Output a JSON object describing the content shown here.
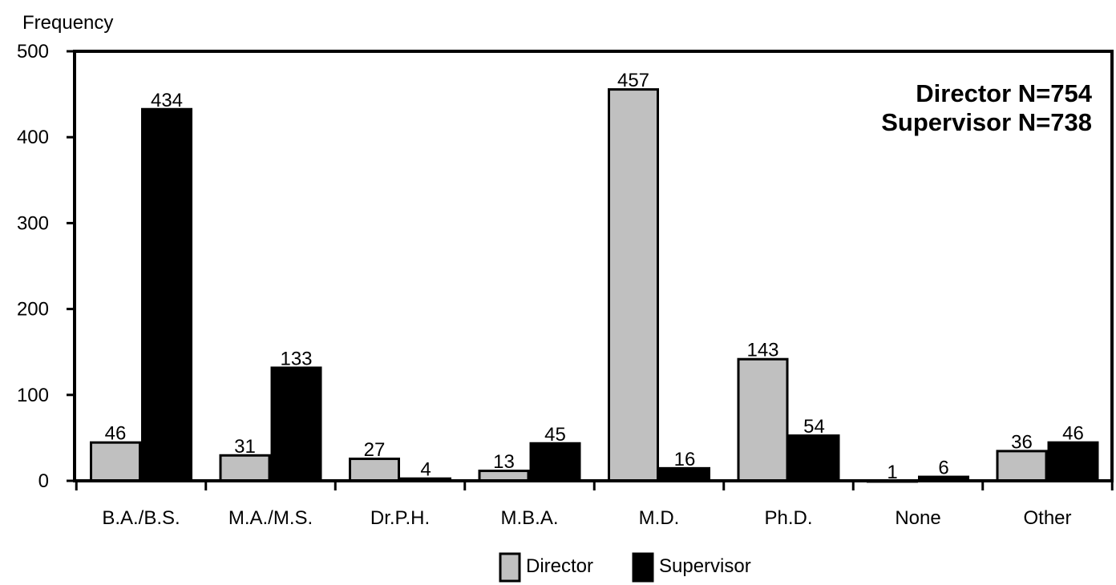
{
  "chart_data": {
    "type": "bar",
    "ylabel": "Frequency",
    "xlabel": "",
    "title": "",
    "ylim": [
      0,
      500
    ],
    "yticks": [
      0,
      100,
      200,
      300,
      400,
      500
    ],
    "categories": [
      "B.A./B.S.",
      "M.A./M.S.",
      "Dr.P.H.",
      "M.B.A.",
      "M.D.",
      "Ph.D.",
      "None",
      "Other"
    ],
    "series": [
      {
        "name": "Director",
        "color": "#c0c0c0",
        "values": [
          46,
          31,
          27,
          13,
          457,
          143,
          1,
          36
        ]
      },
      {
        "name": "Supervisor",
        "color": "#000000",
        "values": [
          434,
          133,
          4,
          45,
          16,
          54,
          6,
          46
        ]
      }
    ],
    "annotations": [
      "Director N=754",
      "Supervisor N=738"
    ],
    "legend_position": "bottom-center",
    "grid": false
  }
}
